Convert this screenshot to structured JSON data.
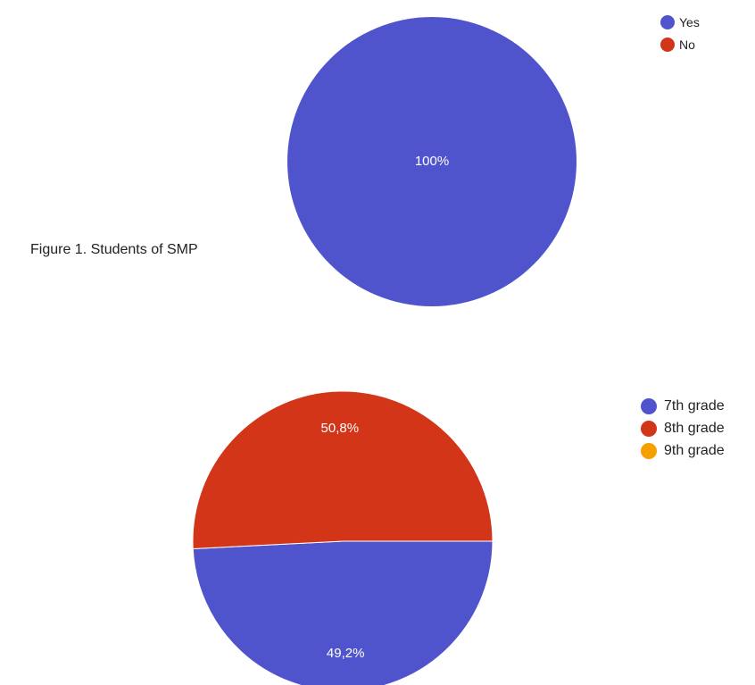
{
  "caption": "Figure 1. Students of SMP",
  "chart_data": [
    {
      "type": "pie",
      "categories": [
        "Yes",
        "No"
      ],
      "values": [
        100,
        0
      ],
      "data_labels": [
        "100%",
        ""
      ],
      "colors": [
        "#5054cc",
        "#d33518"
      ],
      "legend_position": "top-right"
    },
    {
      "type": "pie",
      "categories": [
        "7th grade",
        "8th grade",
        "9th grade"
      ],
      "values": [
        49.2,
        50.8,
        0
      ],
      "data_labels": [
        "49,2%",
        "50,8%",
        ""
      ],
      "colors": [
        "#5054cc",
        "#d33518",
        "#f5a000"
      ],
      "legend_position": "right"
    }
  ]
}
